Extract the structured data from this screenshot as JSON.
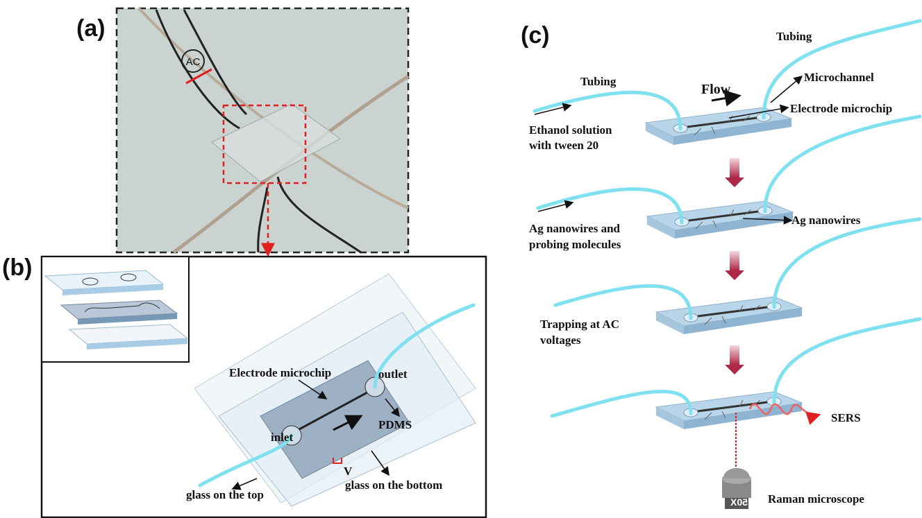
{
  "panel_a": {
    "label": "(a)",
    "ac_label": "AC"
  },
  "panel_b": {
    "label": "(b)",
    "electrode": "Electrode microchip",
    "outlet": "outlet",
    "inlet": "inlet",
    "pdms": "PDMS",
    "voltage": "V",
    "glass_top": "glass on the top",
    "glass_bottom": "glass on the bottom"
  },
  "panel_c": {
    "label": "(c)",
    "tubing_left": "Tubing",
    "tubing_right": "Tubing",
    "flow": "Flow",
    "microchannel": "Microchannel",
    "electrode": "Electrode microchip",
    "step1": {
      "lines": [
        "Ethanol solution",
        "with tween 20"
      ]
    },
    "step2": {
      "lines": [
        "Ag nanowires and",
        "probing molecules"
      ],
      "callout": "Ag nanowires"
    },
    "step3": {
      "lines": [
        "Trapping at AC",
        "voltages"
      ]
    },
    "step4": {
      "sers": "SERS",
      "objective": "50X",
      "microscope": "Raman microscope"
    }
  }
}
